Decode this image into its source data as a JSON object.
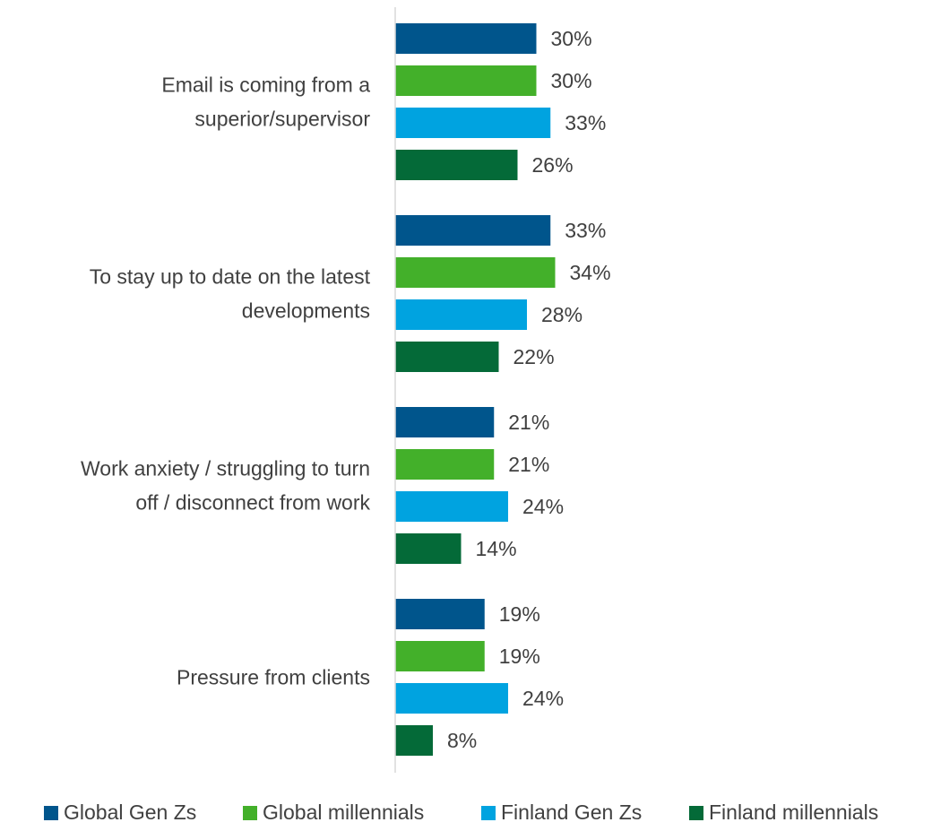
{
  "chart_data": {
    "type": "bar",
    "orientation": "horizontal",
    "categories": [
      [
        "Email is coming from a",
        "superior/supervisor"
      ],
      [
        "To stay up to date on the latest",
        "developments"
      ],
      [
        "Work anxiety / struggling to turn",
        "off / disconnect from work"
      ],
      [
        "Pressure from clients"
      ]
    ],
    "series": [
      {
        "name": "Global Gen Zs",
        "color": "#00558c",
        "values": [
          30,
          33,
          21,
          19
        ]
      },
      {
        "name": "Global millennials",
        "color": "#43b02a",
        "values": [
          30,
          34,
          21,
          19
        ]
      },
      {
        "name": "Finland Gen Zs",
        "color": "#00a3e0",
        "values": [
          33,
          28,
          24,
          24
        ]
      },
      {
        "name": "Finland millennials",
        "color": "#046a38",
        "values": [
          26,
          22,
          14,
          8
        ]
      }
    ],
    "value_suffix": "%",
    "xlim": [
      0,
      100
    ],
    "grid": false,
    "legend_position": "bottom",
    "axis_color": "#d9d9d9"
  }
}
